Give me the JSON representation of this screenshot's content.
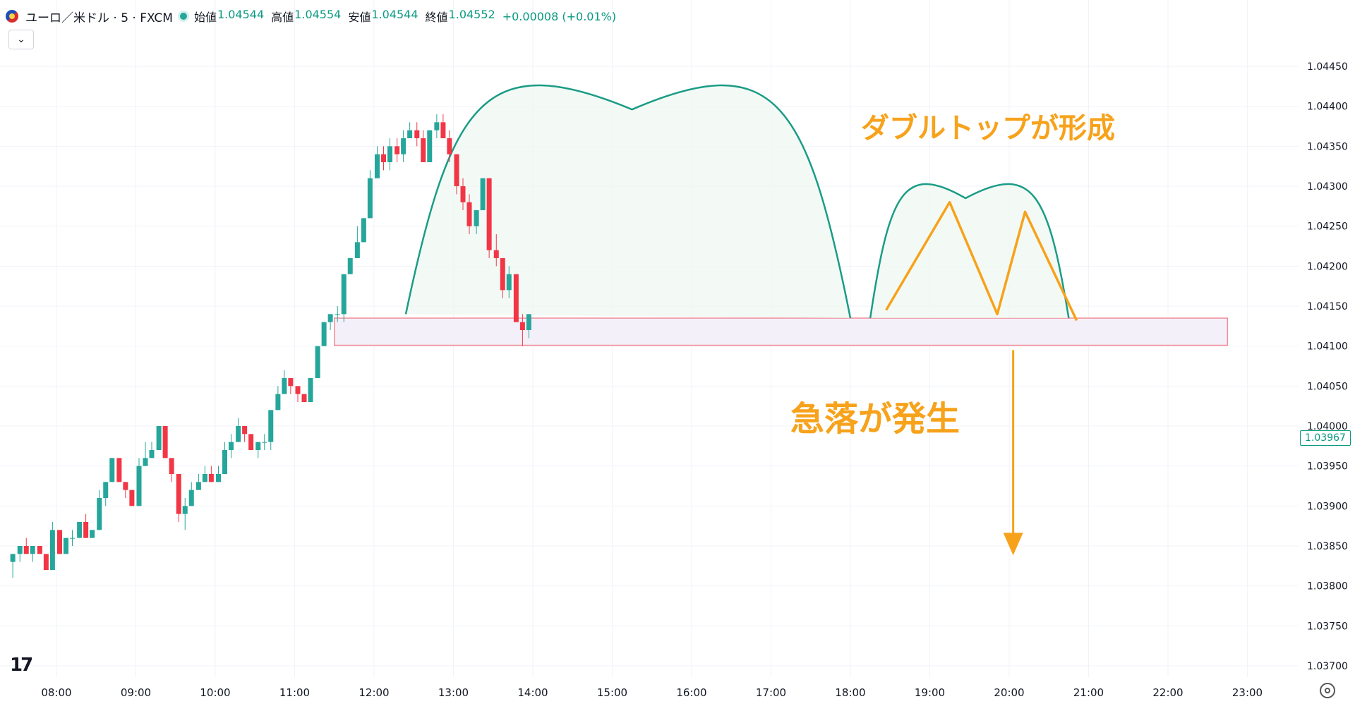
{
  "legend": {
    "symbol": "ユーロ／米ドル · 5 · FXCM",
    "open_label": "始値",
    "open_value": "1.04544",
    "high_label": "高値",
    "high_value": "1.04554",
    "low_label": "安値",
    "low_value": "1.04544",
    "close_label": "終値",
    "close_value": "1.04552",
    "change": "+0.00008 (+0.01%)"
  },
  "price_tag": "1.03967",
  "icons": [
    "flag-icon",
    "chevron-down-icon",
    "tradingview-logo-icon",
    "settings-icon"
  ],
  "colors": {
    "up": "#26a69a",
    "down": "#f23645",
    "arc": "#1a9c86",
    "annotation": "#f7a21b",
    "zone_border": "#f28b96",
    "zone_fill": "#f4f0fa"
  },
  "chart_data": {
    "type": "candlestick",
    "y_ticks": [
      "1.04450",
      "1.04400",
      "1.04350",
      "1.04300",
      "1.04250",
      "1.04200",
      "1.04150",
      "1.04100",
      "1.04050",
      "1.04000",
      "1.03950",
      "1.03900",
      "1.03850",
      "1.03800",
      "1.03750",
      "1.03700"
    ],
    "x_ticks": [
      "08:00",
      "09:00",
      "10:00",
      "11:00",
      "12:00",
      "13:00",
      "14:00",
      "15:00",
      "16:00",
      "17:00",
      "18:00",
      "19:00",
      "20:00",
      "21:00",
      "22:00",
      "23:00"
    ],
    "ylim": [
      1.0368,
      1.04465
    ],
    "annotations": {
      "double_top": "ダブルトップが形成",
      "sharp_drop": "急落が発生"
    },
    "support_zone": {
      "from": 1.04101,
      "to": 1.04135
    },
    "arcs": [
      {
        "start": [
          12.4,
          1.0414
        ],
        "peak": [
          15.25,
          1.04396
        ],
        "end": [
          18.0,
          1.04135
        ]
      },
      {
        "start": [
          18.25,
          1.04135
        ],
        "peak": [
          19.45,
          1.04285
        ],
        "end": [
          20.75,
          1.04135
        ]
      }
    ],
    "double_top_lines": [
      [
        18.45,
        1.04145
      ],
      [
        19.25,
        1.0428
      ],
      [
        19.85,
        1.0414
      ],
      [
        20.2,
        1.04268
      ],
      [
        20.85,
        1.04132
      ]
    ],
    "drop_arrow": {
      "x": 20.05,
      "from": 1.04095,
      "to": 1.0384
    },
    "series": [
      {
        "name": "5min",
        "points": [
          [
            7.45,
            1.0383,
            1.0384,
            1.0381,
            1.0384
          ],
          [
            7.54,
            1.0384,
            1.0385,
            1.0383,
            1.0385
          ],
          [
            7.62,
            1.0385,
            1.0386,
            1.0384,
            1.0384
          ],
          [
            7.7,
            1.0384,
            1.0385,
            1.0383,
            1.0385
          ],
          [
            7.79,
            1.0385,
            1.0385,
            1.0384,
            1.0384
          ],
          [
            7.87,
            1.0384,
            1.0384,
            1.0382,
            1.0382
          ],
          [
            7.95,
            1.0382,
            1.0388,
            1.0382,
            1.0387
          ],
          [
            8.04,
            1.0387,
            1.0387,
            1.0384,
            1.0384
          ],
          [
            8.12,
            1.0384,
            1.0386,
            1.0384,
            1.0386
          ],
          [
            8.2,
            1.0386,
            1.0387,
            1.0385,
            1.0386
          ],
          [
            8.29,
            1.0386,
            1.0388,
            1.0386,
            1.0388
          ],
          [
            8.37,
            1.0388,
            1.0389,
            1.0386,
            1.0386
          ],
          [
            8.45,
            1.0386,
            1.0387,
            1.0386,
            1.0387
          ],
          [
            8.54,
            1.0387,
            1.0392,
            1.0387,
            1.0391
          ],
          [
            8.62,
            1.0391,
            1.0393,
            1.039,
            1.0393
          ],
          [
            8.7,
            1.0393,
            1.0396,
            1.0393,
            1.0396
          ],
          [
            8.79,
            1.0396,
            1.0396,
            1.0393,
            1.0393
          ],
          [
            8.87,
            1.0393,
            1.0393,
            1.0391,
            1.0392
          ],
          [
            8.95,
            1.0392,
            1.0392,
            1.039,
            1.039
          ],
          [
            9.04,
            1.039,
            1.0396,
            1.039,
            1.0395
          ],
          [
            9.12,
            1.0395,
            1.0398,
            1.0395,
            1.0396
          ],
          [
            9.2,
            1.0396,
            1.0398,
            1.0396,
            1.0397
          ],
          [
            9.29,
            1.0397,
            1.04,
            1.0397,
            1.04
          ],
          [
            9.37,
            1.04,
            1.04,
            1.0396,
            1.0396
          ],
          [
            9.45,
            1.0396,
            1.0396,
            1.0393,
            1.0394
          ],
          [
            9.54,
            1.0394,
            1.0394,
            1.0388,
            1.0389
          ],
          [
            9.62,
            1.0389,
            1.0391,
            1.0387,
            1.039
          ],
          [
            9.7,
            1.039,
            1.0393,
            1.039,
            1.0392
          ],
          [
            9.79,
            1.0392,
            1.0394,
            1.0392,
            1.0393
          ],
          [
            9.87,
            1.0393,
            1.0395,
            1.0393,
            1.0394
          ],
          [
            9.95,
            1.0394,
            1.0395,
            1.0393,
            1.0393
          ],
          [
            10.04,
            1.0393,
            1.0395,
            1.0393,
            1.0394
          ],
          [
            10.12,
            1.0394,
            1.0398,
            1.0394,
            1.0397
          ],
          [
            10.2,
            1.0397,
            1.0399,
            1.0396,
            1.0398
          ],
          [
            10.29,
            1.0398,
            1.0401,
            1.0398,
            1.04
          ],
          [
            10.37,
            1.04,
            1.04,
            1.0398,
            1.0399
          ],
          [
            10.45,
            1.0399,
            1.0399,
            1.0397,
            1.0397
          ],
          [
            10.54,
            1.0397,
            1.0398,
            1.0396,
            1.0398
          ],
          [
            10.62,
            1.0398,
            1.0399,
            1.0397,
            1.0398
          ],
          [
            10.7,
            1.0398,
            1.0402,
            1.0397,
            1.0402
          ],
          [
            10.79,
            1.0402,
            1.0405,
            1.0402,
            1.0404
          ],
          [
            10.87,
            1.0404,
            1.0407,
            1.0404,
            1.0406
          ],
          [
            10.95,
            1.0406,
            1.0406,
            1.0404,
            1.0405
          ],
          [
            11.04,
            1.0405,
            1.0405,
            1.0403,
            1.0404
          ],
          [
            11.12,
            1.0404,
            1.0404,
            1.0403,
            1.0403
          ],
          [
            11.2,
            1.0403,
            1.0405,
            1.0403,
            1.0406
          ],
          [
            11.29,
            1.0406,
            1.041,
            1.0406,
            1.041
          ],
          [
            11.37,
            1.041,
            1.0413,
            1.041,
            1.0413
          ],
          [
            11.45,
            1.0413,
            1.0414,
            1.0412,
            1.0414
          ],
          [
            11.54,
            1.0414,
            1.0415,
            1.0413,
            1.0414
          ],
          [
            11.62,
            1.0414,
            1.0419,
            1.0413,
            1.0419
          ],
          [
            11.7,
            1.0419,
            1.0421,
            1.0419,
            1.0421
          ],
          [
            11.79,
            1.0421,
            1.0425,
            1.0421,
            1.0423
          ],
          [
            11.87,
            1.0423,
            1.0426,
            1.0423,
            1.0426
          ],
          [
            11.95,
            1.0426,
            1.0432,
            1.0426,
            1.0431
          ],
          [
            12.04,
            1.0431,
            1.0435,
            1.0431,
            1.0434
          ],
          [
            12.12,
            1.0434,
            1.0435,
            1.0432,
            1.0433
          ],
          [
            12.2,
            1.0433,
            1.0436,
            1.0432,
            1.0435
          ],
          [
            12.29,
            1.0435,
            1.0436,
            1.0433,
            1.0434
          ],
          [
            12.37,
            1.0434,
            1.0437,
            1.0433,
            1.0436
          ],
          [
            12.45,
            1.0436,
            1.0438,
            1.0436,
            1.0437
          ],
          [
            12.54,
            1.0437,
            1.0438,
            1.0435,
            1.0436
          ],
          [
            12.62,
            1.0436,
            1.0437,
            1.0433,
            1.0433
          ],
          [
            12.7,
            1.0433,
            1.0437,
            1.0433,
            1.0437
          ],
          [
            12.79,
            1.0437,
            1.0439,
            1.0436,
            1.0438
          ],
          [
            12.87,
            1.0438,
            1.0439,
            1.0436,
            1.0436
          ],
          [
            12.95,
            1.0436,
            1.0437,
            1.0433,
            1.0434
          ],
          [
            13.04,
            1.0434,
            1.0434,
            1.0429,
            1.043
          ],
          [
            13.12,
            1.043,
            1.0431,
            1.0427,
            1.0428
          ],
          [
            13.2,
            1.0428,
            1.0429,
            1.0424,
            1.0425
          ],
          [
            13.29,
            1.0425,
            1.0427,
            1.0424,
            1.0427
          ],
          [
            13.37,
            1.0427,
            1.0431,
            1.0427,
            1.0431
          ],
          [
            13.45,
            1.0431,
            1.0431,
            1.0421,
            1.0422
          ],
          [
            13.54,
            1.0422,
            1.0424,
            1.042,
            1.0421
          ],
          [
            13.62,
            1.0421,
            1.0421,
            1.0416,
            1.0417
          ],
          [
            13.7,
            1.0417,
            1.042,
            1.0416,
            1.0419
          ],
          [
            13.79,
            1.0419,
            1.0419,
            1.0413,
            1.0413
          ],
          [
            13.87,
            1.0413,
            1.0414,
            1.041,
            1.0412
          ],
          [
            13.95,
            1.0412,
            1.0414,
            1.0411,
            1.0414
          ]
        ]
      }
    ]
  }
}
